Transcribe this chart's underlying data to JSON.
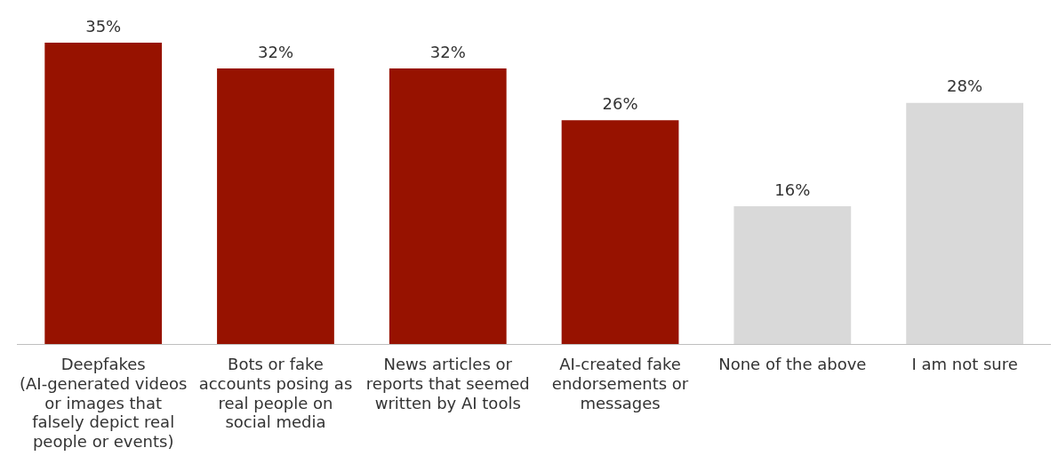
{
  "chart_data": {
    "type": "bar",
    "categories": [
      "Deepfakes (AI-generated videos or images that falsely depict real people or events)",
      "Bots or fake accounts posing as real people on social media",
      "News articles or reports that seemed written by AI tools",
      "AI-created fake endorsements or messages",
      "None of the above",
      "I am not sure"
    ],
    "values": [
      35,
      32,
      32,
      26,
      16,
      28
    ],
    "colors": [
      "#971200",
      "#971200",
      "#971200",
      "#971200",
      "#d9d9d9",
      "#d9d9d9"
    ],
    "value_labels": [
      "35%",
      "32%",
      "32%",
      "26%",
      "16%",
      "28%"
    ],
    "grid": false,
    "legend": false
  }
}
